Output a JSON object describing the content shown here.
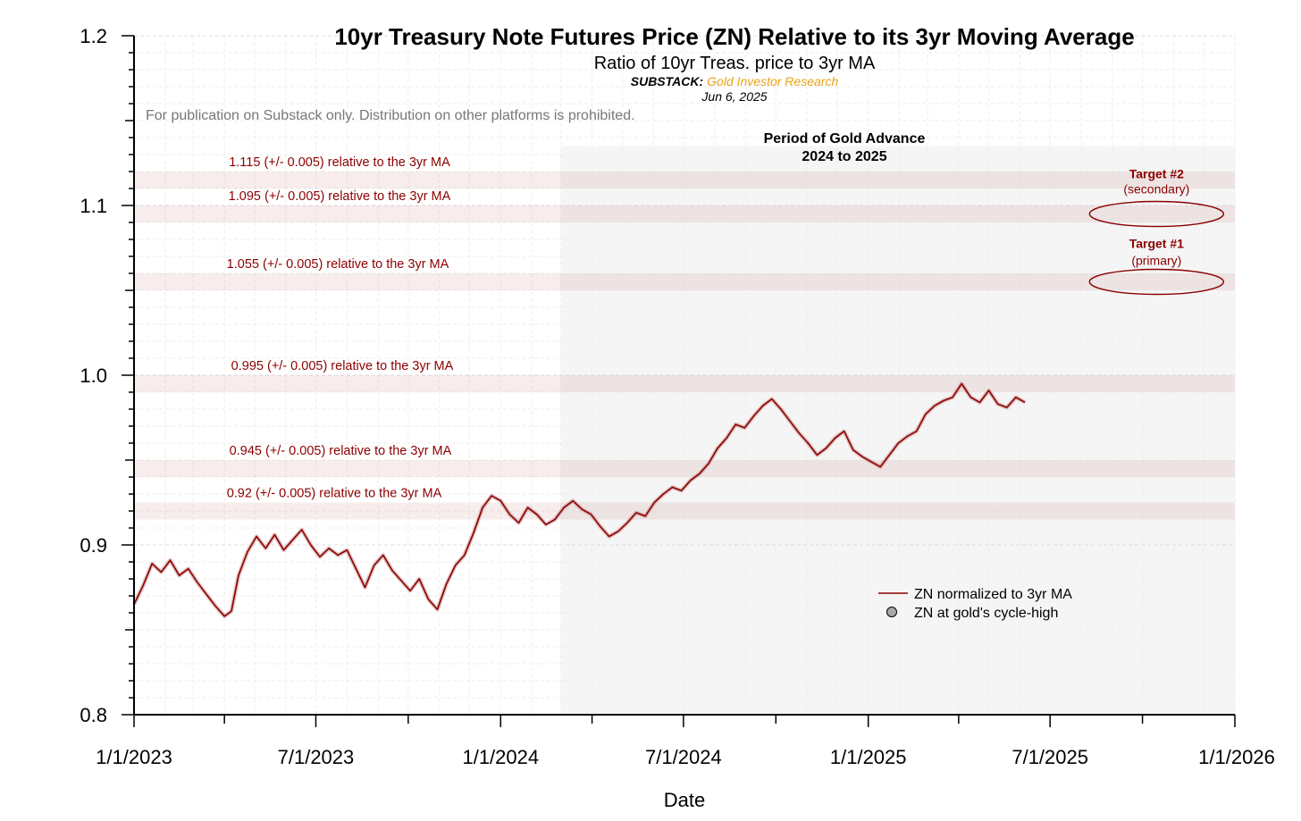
{
  "chart_data": {
    "type": "line",
    "title": "10yr Treasury Note Futures Price (ZN) Relative to its 3yr Moving Average",
    "subtitle": "Ratio of 10yr Treas. price to 3yr MA",
    "source_label": "SUBSTACK:",
    "source_name": "Gold Investor Research",
    "date": "Jun 6, 2025",
    "notice": "For publication on Substack only. Distribution on other platforms is prohibited.",
    "xlabel": "Date",
    "ylabel": "",
    "xlim": [
      "2023-01-01",
      "2026-01-01"
    ],
    "ylim": [
      0.8,
      1.2
    ],
    "x_ticks": [
      "1/1/2023",
      "7/1/2023",
      "1/1/2024",
      "7/1/2024",
      "1/1/2025",
      "7/1/2025",
      "1/1/2026"
    ],
    "y_ticks": [
      "0.8",
      "0.9",
      "1.0",
      "1.1",
      "1.2"
    ],
    "grid": true,
    "legend_position": "lower-right",
    "colors": {
      "line": "#8b0000",
      "band_fill": "#8b0000",
      "line_shadow": "#c98a8a",
      "shade": "#f5f5f5",
      "source_name": "#e8a317"
    },
    "shaded_period": {
      "label_line1": "Period of Gold Advance",
      "label_line2": "2024 to 2025",
      "start": "2024-03-01",
      "end": "2026-01-01"
    },
    "bands": [
      {
        "center": 1.115,
        "label": "1.115 (+/- 0.005) relative to the 3yr MA"
      },
      {
        "center": 1.095,
        "label": "1.095 (+/- 0.005) relative to the 3yr MA"
      },
      {
        "center": 1.055,
        "label": "1.055 (+/- 0.005) relative to the 3yr MA"
      },
      {
        "center": 0.995,
        "label": "0.995 (+/- 0.005) relative to the 3yr MA"
      },
      {
        "center": 0.945,
        "label": "0.945 (+/- 0.005) relative to the 3yr MA"
      },
      {
        "center": 0.92,
        "label": "0.92 (+/- 0.005) relative to the 3yr MA"
      }
    ],
    "targets": [
      {
        "title": "Target #2",
        "subtitle": "(secondary)",
        "date": "2025-10-15",
        "value": 1.095
      },
      {
        "title": "Target #1",
        "subtitle": "(primary)",
        "date": "2025-10-15",
        "value": 1.055
      }
    ],
    "legend": [
      {
        "label": "ZN normalized to 3yr MA",
        "kind": "line"
      },
      {
        "label": "ZN at gold's cycle-high",
        "kind": "marker"
      }
    ],
    "series": [
      {
        "name": "ZN normalized to 3yr MA",
        "points": [
          [
            "2023-01-01",
            0.865
          ],
          [
            "2023-01-10",
            0.876
          ],
          [
            "2023-01-19",
            0.889
          ],
          [
            "2023-01-28",
            0.884
          ],
          [
            "2023-02-06",
            0.891
          ],
          [
            "2023-02-15",
            0.882
          ],
          [
            "2023-02-24",
            0.886
          ],
          [
            "2023-03-05",
            0.878
          ],
          [
            "2023-03-14",
            0.871
          ],
          [
            "2023-03-23",
            0.864
          ],
          [
            "2023-04-01",
            0.858
          ],
          [
            "2023-04-08",
            0.861
          ],
          [
            "2023-04-15",
            0.882
          ],
          [
            "2023-04-24",
            0.896
          ],
          [
            "2023-05-03",
            0.905
          ],
          [
            "2023-05-12",
            0.898
          ],
          [
            "2023-05-21",
            0.906
          ],
          [
            "2023-05-30",
            0.897
          ],
          [
            "2023-06-08",
            0.903
          ],
          [
            "2023-06-17",
            0.909
          ],
          [
            "2023-06-26",
            0.9
          ],
          [
            "2023-07-05",
            0.893
          ],
          [
            "2023-07-14",
            0.898
          ],
          [
            "2023-07-23",
            0.894
          ],
          [
            "2023-08-01",
            0.897
          ],
          [
            "2023-08-10",
            0.886
          ],
          [
            "2023-08-19",
            0.875
          ],
          [
            "2023-08-28",
            0.888
          ],
          [
            "2023-09-06",
            0.894
          ],
          [
            "2023-09-15",
            0.885
          ],
          [
            "2023-09-24",
            0.879
          ],
          [
            "2023-10-03",
            0.873
          ],
          [
            "2023-10-12",
            0.88
          ],
          [
            "2023-10-21",
            0.868
          ],
          [
            "2023-10-30",
            0.862
          ],
          [
            "2023-11-08",
            0.877
          ],
          [
            "2023-11-17",
            0.888
          ],
          [
            "2023-11-26",
            0.894
          ],
          [
            "2023-12-05",
            0.907
          ],
          [
            "2023-12-14",
            0.922
          ],
          [
            "2023-12-23",
            0.929
          ],
          [
            "2024-01-01",
            0.926
          ],
          [
            "2024-01-10",
            0.918
          ],
          [
            "2024-01-19",
            0.913
          ],
          [
            "2024-01-28",
            0.922
          ],
          [
            "2024-02-06",
            0.918
          ],
          [
            "2024-02-15",
            0.912
          ],
          [
            "2024-02-24",
            0.915
          ],
          [
            "2024-03-04",
            0.922
          ],
          [
            "2024-03-13",
            0.926
          ],
          [
            "2024-03-22",
            0.921
          ],
          [
            "2024-03-31",
            0.918
          ],
          [
            "2024-04-09",
            0.911
          ],
          [
            "2024-04-18",
            0.905
          ],
          [
            "2024-04-27",
            0.908
          ],
          [
            "2024-05-06",
            0.913
          ],
          [
            "2024-05-15",
            0.919
          ],
          [
            "2024-05-24",
            0.917
          ],
          [
            "2024-06-02",
            0.925
          ],
          [
            "2024-06-11",
            0.93
          ],
          [
            "2024-06-20",
            0.934
          ],
          [
            "2024-06-29",
            0.932
          ],
          [
            "2024-07-08",
            0.938
          ],
          [
            "2024-07-17",
            0.942
          ],
          [
            "2024-07-26",
            0.948
          ],
          [
            "2024-08-04",
            0.957
          ],
          [
            "2024-08-13",
            0.963
          ],
          [
            "2024-08-22",
            0.971
          ],
          [
            "2024-08-31",
            0.969
          ],
          [
            "2024-09-09",
            0.976
          ],
          [
            "2024-09-18",
            0.982
          ],
          [
            "2024-09-27",
            0.986
          ],
          [
            "2024-10-06",
            0.98
          ],
          [
            "2024-10-15",
            0.973
          ],
          [
            "2024-10-24",
            0.966
          ],
          [
            "2024-11-02",
            0.96
          ],
          [
            "2024-11-11",
            0.953
          ],
          [
            "2024-11-20",
            0.957
          ],
          [
            "2024-11-29",
            0.963
          ],
          [
            "2024-12-08",
            0.967
          ],
          [
            "2024-12-17",
            0.956
          ],
          [
            "2024-12-26",
            0.952
          ],
          [
            "2025-01-04",
            0.949
          ],
          [
            "2025-01-13",
            0.946
          ],
          [
            "2025-01-22",
            0.953
          ],
          [
            "2025-01-31",
            0.96
          ],
          [
            "2025-02-09",
            0.964
          ],
          [
            "2025-02-18",
            0.967
          ],
          [
            "2025-02-27",
            0.977
          ],
          [
            "2025-03-08",
            0.982
          ],
          [
            "2025-03-17",
            0.985
          ],
          [
            "2025-03-26",
            0.987
          ],
          [
            "2025-04-04",
            0.995
          ],
          [
            "2025-04-13",
            0.987
          ],
          [
            "2025-04-22",
            0.984
          ],
          [
            "2025-05-01",
            0.991
          ],
          [
            "2025-05-10",
            0.983
          ],
          [
            "2025-05-19",
            0.981
          ],
          [
            "2025-05-28",
            0.987
          ],
          [
            "2025-06-06",
            0.984
          ]
        ]
      }
    ]
  }
}
